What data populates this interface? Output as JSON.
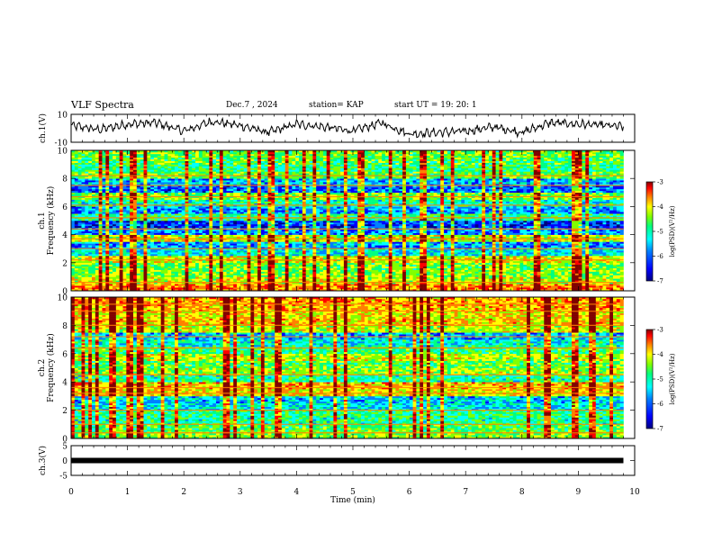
{
  "header": {
    "title": "VLF Spectra",
    "date": "Dec.7 , 2024",
    "station": "station= KAP",
    "start": "start UT =   19: 20: 1"
  },
  "colors": {
    "scale": [
      "#000080",
      "#0000ff",
      "#0080ff",
      "#00ffff",
      "#00ff80",
      "#80ff00",
      "#ffff00",
      "#ff8000",
      "#ff0000",
      "#800000"
    ],
    "trace": "#000000",
    "axis": "#000000"
  },
  "chart_data": [
    {
      "type": "line",
      "panel": "ch1_waveform",
      "ylabel": "ch.1(V)",
      "ylim": [
        -10,
        10
      ],
      "yticks": [
        "10",
        "-10"
      ],
      "x_min": [
        0,
        0.5,
        1,
        1.5,
        2,
        2.5,
        3,
        3.5,
        4,
        4.5,
        5,
        5.5,
        6,
        6.5,
        7,
        7.5,
        8,
        8.5,
        9,
        9.5,
        9.8
      ],
      "y_v": [
        2,
        -1,
        3,
        4,
        -2,
        5,
        2,
        -3,
        3,
        1,
        -2,
        4,
        -4,
        -3,
        -2,
        1,
        -3,
        4,
        3,
        2,
        1
      ]
    },
    {
      "type": "heatmap",
      "panel": "ch1_spectrogram",
      "ylabel": "ch.1 Frequency (kHz)",
      "ylim": [
        0,
        10
      ],
      "yticks": [
        "0",
        "2",
        "4",
        "6",
        "8",
        "10"
      ],
      "colorbar_label": "log(PSD)(V²/Hz)",
      "colorbar_ticks": [
        "-3",
        "-4",
        "-5",
        "-6",
        "-7"
      ],
      "colorbar_range": [
        -7,
        -3
      ],
      "freq_kHz": [
        0.25,
        0.75,
        1.25,
        1.75,
        2.25,
        2.75,
        3.25,
        3.75,
        4.25,
        4.75,
        5.25,
        5.75,
        6.25,
        6.75,
        7.25,
        7.75,
        8.25,
        8.75,
        9.25,
        9.75
      ],
      "log_psd": [
        -4.0,
        -4.6,
        -4.8,
        -4.9,
        -4.5,
        -5.6,
        -5.9,
        -4.6,
        -6.0,
        -6.3,
        -5.2,
        -5.9,
        -5.4,
        -4.8,
        -6.1,
        -5.8,
        -4.9,
        -5.2,
        -5.0,
        -4.9
      ],
      "harmonic_lines_kHz": [
        0.6,
        2.2,
        3.0,
        3.7,
        4.4,
        5.2,
        6.1,
        6.7,
        7.5,
        8.2
      ]
    },
    {
      "type": "heatmap",
      "panel": "ch2_spectrogram",
      "ylabel": "ch.2 Frequency (kHz)",
      "ylim": [
        0,
        10
      ],
      "yticks": [
        "0",
        "2",
        "4",
        "6",
        "8",
        "10"
      ],
      "colorbar_label": "log(PSD)(V²/Hz)",
      "colorbar_ticks": [
        "-3",
        "-4",
        "-5",
        "-6",
        "-7"
      ],
      "colorbar_range": [
        -7,
        -3
      ],
      "freq_kHz": [
        0.25,
        0.75,
        1.25,
        1.75,
        2.25,
        2.75,
        3.25,
        3.75,
        4.25,
        4.75,
        5.25,
        5.75,
        6.25,
        6.75,
        7.25,
        7.75,
        8.25,
        8.75,
        9.25,
        9.75
      ],
      "log_psd": [
        -4.8,
        -5.0,
        -5.3,
        -5.2,
        -5.6,
        -5.7,
        -4.4,
        -4.2,
        -5.3,
        -4.7,
        -5.0,
        -4.6,
        -5.1,
        -5.5,
        -5.8,
        -4.6,
        -4.3,
        -4.4,
        -4.2,
        -4.1
      ],
      "harmonic_lines_kHz": [
        0.4,
        1.0,
        2.0,
        3.2,
        3.6,
        4.5,
        6.4,
        7.2,
        8.0,
        9.0,
        9.5
      ]
    },
    {
      "type": "line",
      "panel": "ch3_level",
      "ylabel": "ch.3(V)",
      "ylim": [
        -5,
        5
      ],
      "yticks": [
        "5",
        "0",
        "-5"
      ],
      "x_min": [
        0,
        9.8
      ],
      "y_v": [
        0,
        0
      ]
    }
  ],
  "xaxis": {
    "label": "Time (min)",
    "range": [
      0,
      10
    ],
    "ticks": [
      "0",
      "1",
      "2",
      "3",
      "4",
      "5",
      "6",
      "7",
      "8",
      "9",
      "10"
    ]
  }
}
